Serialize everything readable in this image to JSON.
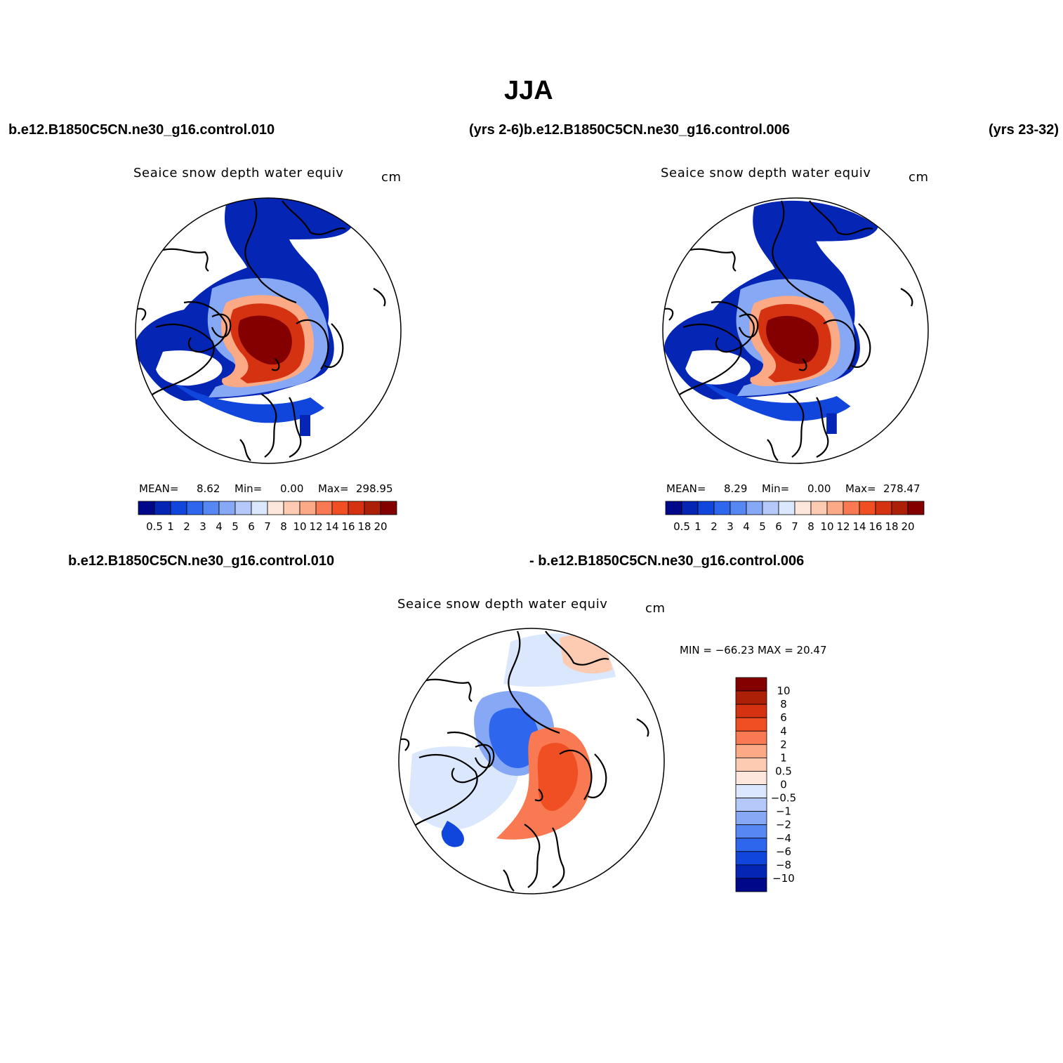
{
  "title": "JJA",
  "top_left_case": "b.e12.B1850C5CN.ne30_g16.control.010",
  "top_middle_case": "(yrs 2-6)b.e12.B1850C5CN.ne30_g16.control.006",
  "top_right_case": "(yrs 23-32)",
  "bottom_left_case": "b.e12.B1850C5CN.ne30_g16.control.010",
  "bottom_right_case": "- b.e12.B1850C5CN.ne30_g16.control.006",
  "panels": [
    {
      "variable": "Seaice snow depth water equiv",
      "units": "cm",
      "stats": {
        "mean_label": "MEAN=",
        "mean": "8.62",
        "min_label": "Min=",
        "min": "0.00",
        "max_label": "Max=",
        "max": "298.95"
      }
    },
    {
      "variable": "Seaice snow depth water equiv",
      "units": "cm",
      "stats": {
        "mean_label": "MEAN=",
        "mean": "8.29",
        "min_label": "Min=",
        "min": "0.00",
        "max_label": "Max=",
        "max": "278.47"
      }
    },
    {
      "variable": "Seaice snow depth water equiv",
      "units": "cm",
      "stats_line": "MIN = −66.23 MAX =   20.47"
    }
  ],
  "colorbar_abs": {
    "levels": [
      "0.5",
      "1",
      "2",
      "3",
      "4",
      "5",
      "6",
      "7",
      "8",
      "10",
      "12",
      "14",
      "16",
      "18",
      "20"
    ],
    "colors": [
      "#00088a",
      "#0525b5",
      "#1046dc",
      "#2e66ee",
      "#5687f2",
      "#86a8f5",
      "#b4c9f9",
      "#dbe7fc",
      "#fde7dc",
      "#fdcbb2",
      "#fcaa85",
      "#f97a52",
      "#ef4f22",
      "#d53212",
      "#ad2008",
      "#840000"
    ]
  },
  "colorbar_diff": {
    "levels": [
      "10",
      "8",
      "6",
      "4",
      "2",
      "1",
      "0.5",
      "0",
      "−0.5",
      "−1",
      "−2",
      "−4",
      "−6",
      "−8",
      "−10"
    ],
    "colors": [
      "#840000",
      "#ad2008",
      "#d53212",
      "#ef4f22",
      "#f97a52",
      "#fcaa85",
      "#fdcbb2",
      "#fde7dc",
      "#dbe7fc",
      "#b4c9f9",
      "#86a8f5",
      "#5687f2",
      "#2e66ee",
      "#1046dc",
      "#0525b5",
      "#00088a"
    ]
  }
}
